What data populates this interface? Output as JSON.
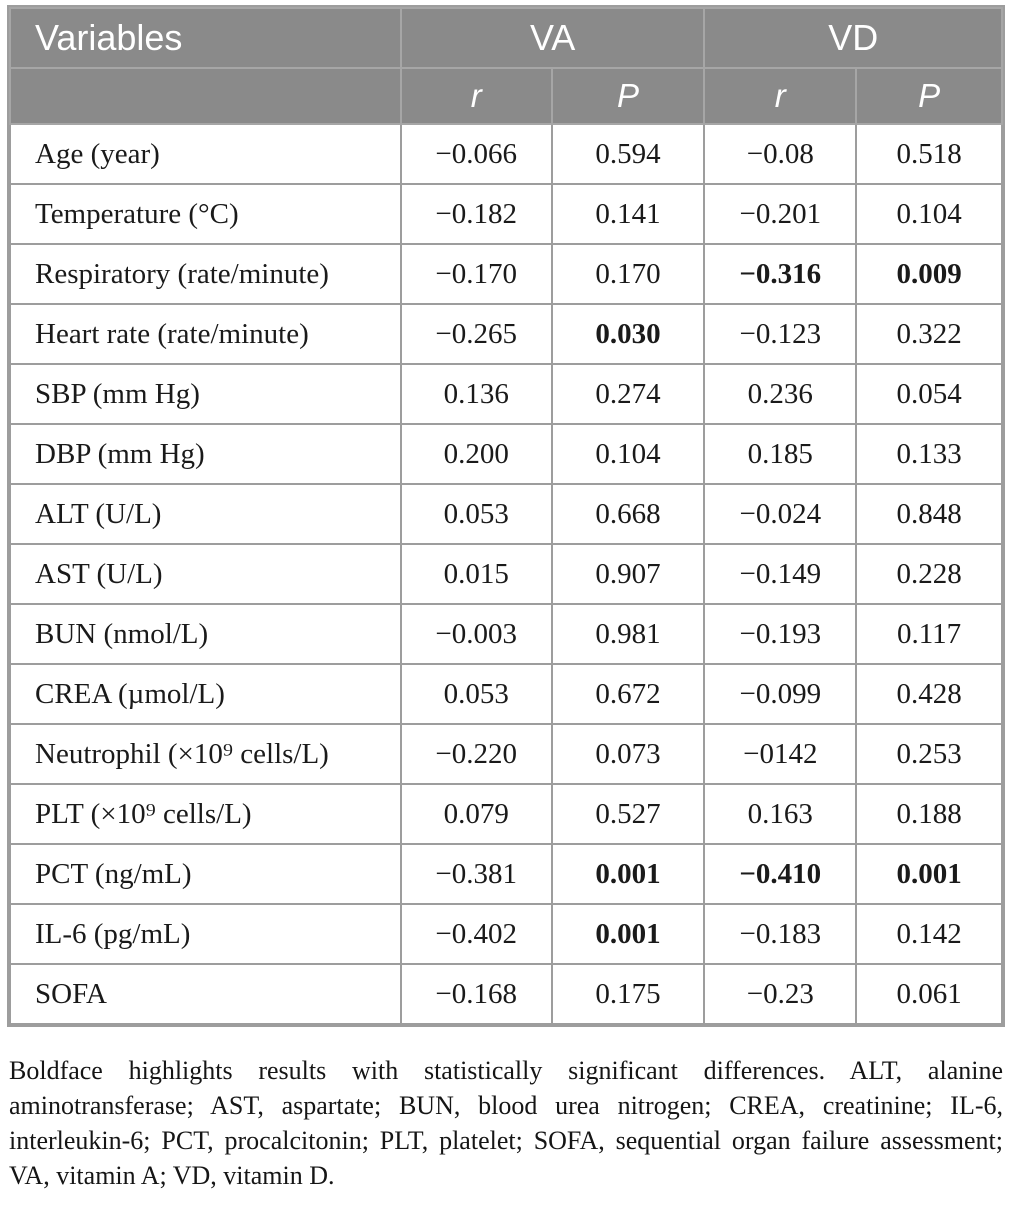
{
  "colors": {
    "header_bg": "#8a8a8a",
    "header_text": "#ffffff",
    "header_divider": "#a6a6a6",
    "grid_line": "#9d9d9d",
    "cell_bg": "#ffffff",
    "body_text": "#1a1a1a",
    "footnote_text": "#151515"
  },
  "table": {
    "header": {
      "variables_label": "Variables",
      "group_va": "VA",
      "group_vd": "VD",
      "subheaders": [
        "r",
        "P",
        "r",
        "P"
      ]
    },
    "rows": [
      {
        "variable": "Age (year)",
        "va_r": "−0.066",
        "va_p": "0.594",
        "vd_r": "−0.08",
        "vd_p": "0.518",
        "bold": []
      },
      {
        "variable": "Temperature (°C)",
        "va_r": "−0.182",
        "va_p": "0.141",
        "vd_r": "−0.201",
        "vd_p": "0.104",
        "bold": []
      },
      {
        "variable": "Respiratory (rate/minute)",
        "va_r": "−0.170",
        "va_p": "0.170",
        "vd_r": "−0.316",
        "vd_p": "0.009",
        "bold": [
          "vd_r",
          "vd_p"
        ]
      },
      {
        "variable": "Heart rate (rate/minute)",
        "va_r": "−0.265",
        "va_p": "0.030",
        "vd_r": "−0.123",
        "vd_p": "0.322",
        "bold": [
          "va_p"
        ]
      },
      {
        "variable": "SBP (mm Hg)",
        "va_r": "0.136",
        "va_p": "0.274",
        "vd_r": "0.236",
        "vd_p": "0.054",
        "bold": []
      },
      {
        "variable": "DBP (mm Hg)",
        "va_r": "0.200",
        "va_p": "0.104",
        "vd_r": "0.185",
        "vd_p": "0.133",
        "bold": []
      },
      {
        "variable": "ALT (U/L)",
        "va_r": "0.053",
        "va_p": "0.668",
        "vd_r": "−0.024",
        "vd_p": "0.848",
        "bold": []
      },
      {
        "variable": "AST (U/L)",
        "va_r": "0.015",
        "va_p": "0.907",
        "vd_r": "−0.149",
        "vd_p": "0.228",
        "bold": []
      },
      {
        "variable": "BUN (nmol/L)",
        "va_r": "−0.003",
        "va_p": "0.981",
        "vd_r": "−0.193",
        "vd_p": "0.117",
        "bold": []
      },
      {
        "variable": "CREA (µmol/L)",
        "va_r": "0.053",
        "va_p": "0.672",
        "vd_r": "−0.099",
        "vd_p": "0.428",
        "bold": []
      },
      {
        "variable": "Neutrophil (×10⁹ cells/L)",
        "va_r": "−0.220",
        "va_p": "0.073",
        "vd_r": "−0142",
        "vd_p": "0.253",
        "bold": []
      },
      {
        "variable": "PLT (×10⁹ cells/L)",
        "va_r": "0.079",
        "va_p": "0.527",
        "vd_r": "0.163",
        "vd_p": "0.188",
        "bold": []
      },
      {
        "variable": "PCT (ng/mL)",
        "va_r": "−0.381",
        "va_p": "0.001",
        "vd_r": "−0.410",
        "vd_p": "0.001",
        "bold": [
          "va_p",
          "vd_r",
          "vd_p"
        ]
      },
      {
        "variable": "IL-6 (pg/mL)",
        "va_r": "−0.402",
        "va_p": "0.001",
        "vd_r": "−0.183",
        "vd_p": "0.142",
        "bold": [
          "va_p"
        ]
      },
      {
        "variable": "SOFA",
        "va_r": "−0.168",
        "va_p": "0.175",
        "vd_r": "−0.23",
        "vd_p": "0.061",
        "bold": []
      }
    ]
  },
  "footnote": {
    "text": "Boldface highlights results with statistically significant differences. ALT, alanine aminotransferase; AST, aspartate; BUN, blood urea nitrogen; CREA, creatinine; IL-6, interleukin-6; PCT, procalcitonin; PLT, platelet; SOFA, sequential organ failure assessment; VA, vitamin A; VD, vitamin D."
  }
}
